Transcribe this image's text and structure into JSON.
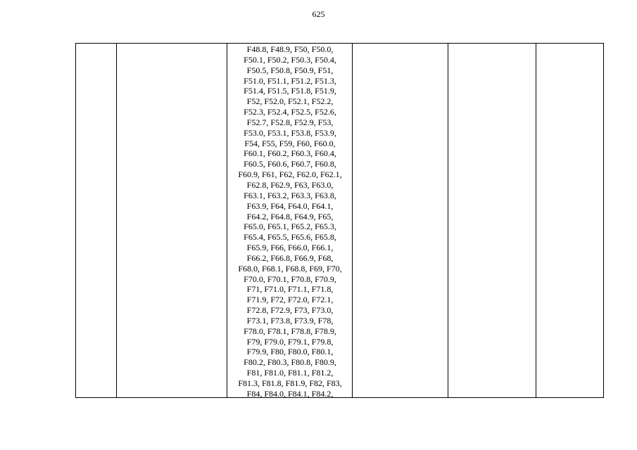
{
  "page_number": "625",
  "table": {
    "cell_lines": [
      "F48.8, F48.9, F50, F50.0,",
      "F50.1, F50.2, F50.3, F50.4,",
      "F50.5, F50.8, F50.9, F51,",
      "F51.0, F51.1, F51.2, F51.3,",
      "F51.4, F51.5, F51.8, F51.9,",
      "F52, F52.0, F52.1, F52.2,",
      "F52.3, F52.4, F52.5, F52.6,",
      "F52.7, F52.8, F52.9, F53,",
      "F53.0, F53.1, F53.8, F53.9,",
      "F54, F55, F59, F60, F60.0,",
      "F60.1, F60.2, F60.3, F60.4,",
      "F60.5, F60.6, F60.7, F60.8,",
      "F60.9, F61, F62, F62.0, F62.1,",
      "F62.8, F62.9, F63, F63.0,",
      "F63.1, F63.2, F63.3, F63.8,",
      "F63.9, F64, F64.0, F64.1,",
      "F64.2, F64.8, F64.9, F65,",
      "F65.0, F65.1, F65.2, F65.3,",
      "F65.4, F65.5, F65.6, F65.8,",
      "F65.9, F66, F66.0, F66.1,",
      "F66.2, F66.8, F66.9, F68,",
      "F68.0, F68.1, F68.8, F69, F70,",
      "F70.0, F70.1, F70.8, F70.9,",
      "F71, F71.0, F71.1, F71.8,",
      "F71.9, F72, F72.0, F72.1,",
      "F72.8, F72.9, F73, F73.0,",
      "F73.1, F73.8, F73.9, F78,",
      "F78.0, F78.1, F78.8, F78.9,",
      "F79, F79.0, F79.1, F79.8,",
      "F79.9, F80, F80.0, F80.1,",
      "F80.2, F80.3, F80.8, F80.9,",
      "F81, F81.0, F81.1, F81.2,",
      "F81.3, F81.8, F81.9, F82, F83,",
      "F84, F84.0, F84.1, F84.2,"
    ]
  }
}
